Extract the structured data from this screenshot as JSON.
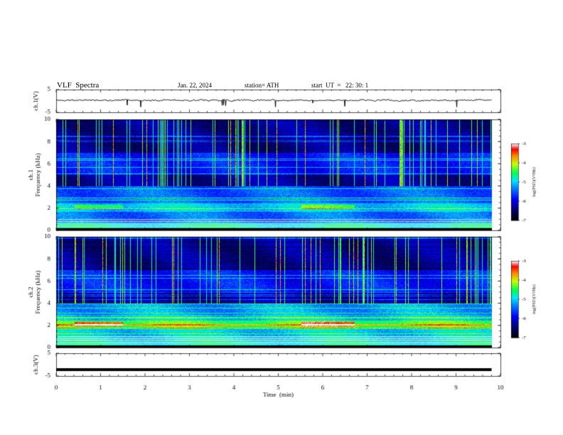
{
  "header": {
    "title": "VLF  Spectra",
    "date": "Jan. 22, 2024",
    "station": "station= ATH",
    "start": "start  UT  =   22: 30: 1"
  },
  "chart_data": [
    {
      "type": "line",
      "panel": "ch1-waveform",
      "ylabel": "ch.1(V)",
      "ylim": [
        -5,
        5
      ],
      "yticks": [
        "5",
        "-5"
      ],
      "xlim": [
        0,
        10
      ],
      "series": [
        {
          "description_level_V": 0.3,
          "noise_amplitude_V": 0.6
        }
      ]
    },
    {
      "type": "heatmap",
      "panel": "ch1-spectrogram",
      "ylabel": "ch.1\nFrequency (kHz)",
      "ylim": [
        0,
        10
      ],
      "yticks": [
        "0",
        "2",
        "4",
        "6",
        "8",
        "10"
      ],
      "xlim": [
        0,
        9.8
      ],
      "colorbar": {
        "label": "log(PSD)(V²/Hz)",
        "range": [
          -7,
          -3
        ],
        "ticks": [
          "-3",
          "-4",
          "-5",
          "-6",
          "-7"
        ]
      }
    },
    {
      "type": "heatmap",
      "panel": "ch2-spectrogram",
      "ylabel": "ch.2\nFrequency (kHz)",
      "ylim": [
        0,
        10
      ],
      "yticks": [
        "0",
        "2",
        "4",
        "6",
        "8",
        "10"
      ],
      "xlim": [
        0,
        9.8
      ],
      "colorbar": {
        "label": "log(PSD)(V²/Hz)",
        "range": [
          -7,
          -3
        ],
        "ticks": [
          "-3",
          "-4",
          "-5",
          "-6",
          "-7"
        ]
      }
    },
    {
      "type": "line",
      "panel": "ch3-waveform",
      "ylabel": "ch.3(V)",
      "ylim": [
        -5,
        5
      ],
      "yticks": [
        "5",
        "-5"
      ],
      "xlim": [
        0,
        10
      ],
      "series": [
        {
          "description_level_V": -2.2
        }
      ]
    }
  ],
  "xaxis": {
    "label": "Time  (min)",
    "ticks": [
      "0",
      "1",
      "2",
      "3",
      "4",
      "5",
      "6",
      "7",
      "8",
      "9",
      "10"
    ]
  },
  "colors": {
    "colormap": [
      "#000000",
      "#000080",
      "#0000ff",
      "#0080ff",
      "#00ffff",
      "#00ff00",
      "#ffff00",
      "#ff8000",
      "#ff0000",
      "#ffffff"
    ]
  }
}
